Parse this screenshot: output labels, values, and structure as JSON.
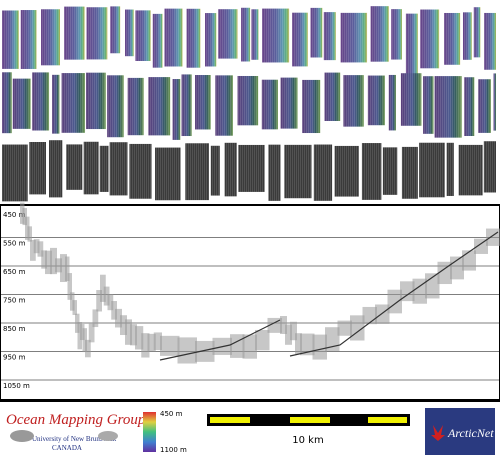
{
  "profile": {
    "depth_labels": [
      "450 m",
      "550 m",
      "650 m",
      "750 m",
      "850 m",
      "950 m",
      "1050 m"
    ]
  },
  "footer": {
    "group": "Ocean Mapping Group",
    "university": "University of New Brunswick",
    "country": "CANADA",
    "colorbar": {
      "top": "450 m",
      "bottom": "1100 m"
    },
    "scale": "10 km",
    "partner": "ArcticNet"
  }
}
